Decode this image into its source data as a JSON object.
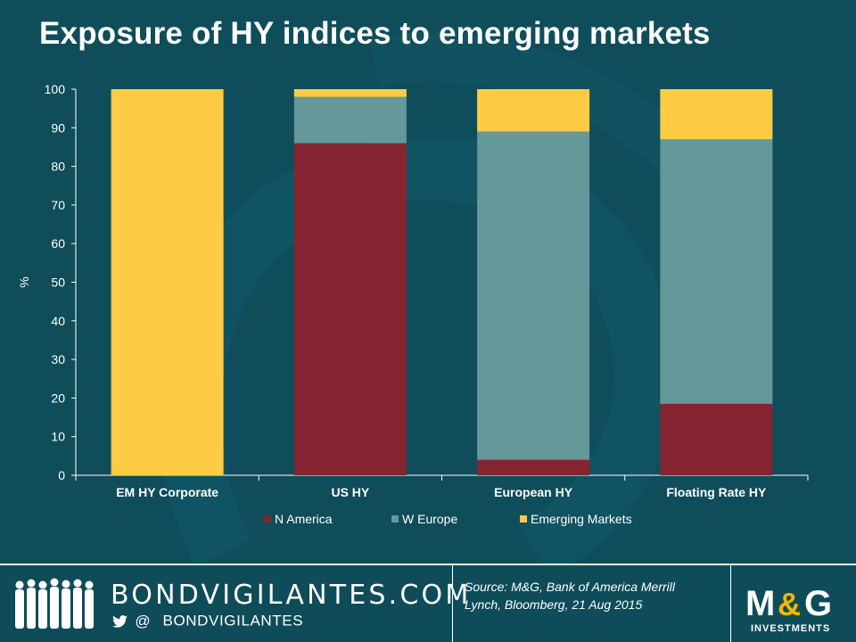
{
  "title": "Exposure of HY indices to emerging markets",
  "chart_data": {
    "type": "bar",
    "stacked": true,
    "categories": [
      "EM HY Corporate",
      "US HY",
      "European HY",
      "Floating Rate HY"
    ],
    "series": [
      {
        "name": "N America",
        "color": "#862431",
        "values": [
          0,
          86,
          4,
          18.5
        ]
      },
      {
        "name": "W Europe",
        "color": "#649899",
        "values": [
          0,
          12,
          85,
          68.5
        ]
      },
      {
        "name": "Emerging Markets",
        "color": "#fecb45",
        "values": [
          100,
          2,
          11,
          13
        ]
      }
    ],
    "ylabel": "%",
    "ylim": [
      0,
      100
    ],
    "yticks": [
      "0",
      "10",
      "20",
      "30",
      "40",
      "50",
      "60",
      "70",
      "80",
      "90",
      "100"
    ],
    "grid": false,
    "legend": "bottom"
  },
  "footer": {
    "brand": "BONDVIGILANTES.COM",
    "at": "@",
    "handle": "BONDVIGILANTES",
    "source_line1": "Source: M&G, Bank of America Merrill",
    "source_line2": "Lynch, Bloomberg, 21 Aug 2015",
    "logo_text": "M&G",
    "logo_sub": "INVESTMENTS"
  },
  "colors": {
    "background": "#0f4d5a",
    "axis": "#ffffff",
    "logo_bg": "#ffffff",
    "logo_red": "#a8152a",
    "logo_amp": "#f3b800"
  }
}
